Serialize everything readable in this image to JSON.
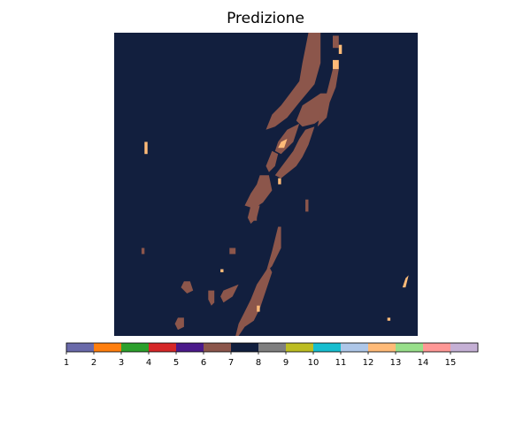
{
  "chart_data": {
    "type": "heatmap",
    "title": "Predizione",
    "background_class": 8,
    "background_color": "#121f3e",
    "regions": [
      {
        "class": 7,
        "color": "#8c564b",
        "polygon": [
          [
            0.64,
            0.0
          ],
          [
            0.68,
            0.0
          ],
          [
            0.68,
            0.1
          ],
          [
            0.66,
            0.17
          ],
          [
            0.61,
            0.23
          ],
          [
            0.57,
            0.28
          ],
          [
            0.53,
            0.31
          ],
          [
            0.5,
            0.32
          ],
          [
            0.52,
            0.27
          ],
          [
            0.55,
            0.24
          ],
          [
            0.58,
            0.2
          ],
          [
            0.61,
            0.16
          ],
          [
            0.62,
            0.1
          ],
          [
            0.63,
            0.05
          ]
        ]
      },
      {
        "class": 7,
        "color": "#8c564b",
        "polygon": [
          [
            0.68,
            0.2
          ],
          [
            0.71,
            0.2
          ],
          [
            0.7,
            0.27
          ],
          [
            0.66,
            0.3
          ],
          [
            0.62,
            0.31
          ],
          [
            0.6,
            0.29
          ],
          [
            0.62,
            0.24
          ],
          [
            0.65,
            0.22
          ]
        ]
      },
      {
        "class": 7,
        "color": "#8c564b",
        "polygon": [
          [
            0.72,
            0.12
          ],
          [
            0.74,
            0.12
          ],
          [
            0.73,
            0.18
          ],
          [
            0.71,
            0.23
          ],
          [
            0.7,
            0.28
          ],
          [
            0.67,
            0.31
          ],
          [
            0.68,
            0.26
          ],
          [
            0.7,
            0.2
          ]
        ]
      },
      {
        "class": 7,
        "color": "#8c564b",
        "polygon": [
          [
            0.57,
            0.32
          ],
          [
            0.61,
            0.3
          ],
          [
            0.59,
            0.36
          ],
          [
            0.55,
            0.4
          ],
          [
            0.53,
            0.39
          ],
          [
            0.54,
            0.36
          ]
        ]
      },
      {
        "class": 7,
        "color": "#8c564b",
        "polygon": [
          [
            0.63,
            0.32
          ],
          [
            0.66,
            0.31
          ],
          [
            0.64,
            0.37
          ],
          [
            0.62,
            0.41
          ],
          [
            0.6,
            0.44
          ],
          [
            0.55,
            0.48
          ],
          [
            0.53,
            0.47
          ],
          [
            0.56,
            0.43
          ],
          [
            0.59,
            0.39
          ],
          [
            0.61,
            0.35
          ]
        ]
      },
      {
        "class": 7,
        "color": "#8c564b",
        "polygon": [
          [
            0.52,
            0.39
          ],
          [
            0.54,
            0.4
          ],
          [
            0.53,
            0.44
          ],
          [
            0.51,
            0.46
          ],
          [
            0.5,
            0.44
          ]
        ]
      },
      {
        "class": 7,
        "color": "#8c564b",
        "polygon": [
          [
            0.48,
            0.47
          ],
          [
            0.51,
            0.47
          ],
          [
            0.52,
            0.52
          ],
          [
            0.49,
            0.56
          ],
          [
            0.46,
            0.58
          ],
          [
            0.43,
            0.57
          ],
          [
            0.45,
            0.53
          ],
          [
            0.47,
            0.5
          ]
        ]
      },
      {
        "class": 7,
        "color": "#8c564b",
        "polygon": [
          [
            0.45,
            0.57
          ],
          [
            0.48,
            0.57
          ],
          [
            0.47,
            0.61
          ],
          [
            0.45,
            0.63
          ],
          [
            0.44,
            0.61
          ]
        ]
      },
      {
        "class": 7,
        "color": "#8c564b",
        "polygon": [
          [
            0.54,
            0.64
          ],
          [
            0.55,
            0.64
          ],
          [
            0.55,
            0.71
          ],
          [
            0.52,
            0.77
          ],
          [
            0.5,
            0.79
          ],
          [
            0.52,
            0.72
          ],
          [
            0.53,
            0.68
          ]
        ]
      },
      {
        "class": 7,
        "color": "#8c564b",
        "polygon": [
          [
            0.51,
            0.77
          ],
          [
            0.52,
            0.79
          ],
          [
            0.5,
            0.85
          ],
          [
            0.48,
            0.91
          ],
          [
            0.46,
            0.95
          ],
          [
            0.43,
            0.97
          ],
          [
            0.41,
            1.0
          ],
          [
            0.4,
            1.0
          ],
          [
            0.41,
            0.96
          ],
          [
            0.43,
            0.92
          ],
          [
            0.45,
            0.88
          ],
          [
            0.47,
            0.83
          ],
          [
            0.49,
            0.8
          ]
        ]
      },
      {
        "class": 7,
        "color": "#8c564b",
        "polygon": [
          [
            0.36,
            0.85
          ],
          [
            0.41,
            0.83
          ],
          [
            0.39,
            0.87
          ],
          [
            0.36,
            0.89
          ],
          [
            0.35,
            0.87
          ]
        ]
      },
      {
        "class": 7,
        "color": "#8c564b",
        "polygon": [
          [
            0.23,
            0.82
          ],
          [
            0.25,
            0.82
          ],
          [
            0.26,
            0.85
          ],
          [
            0.24,
            0.86
          ],
          [
            0.22,
            0.84
          ]
        ]
      },
      {
        "class": 7,
        "color": "#8c564b",
        "polygon": [
          [
            0.31,
            0.85
          ],
          [
            0.33,
            0.85
          ],
          [
            0.33,
            0.89
          ],
          [
            0.32,
            0.9
          ],
          [
            0.31,
            0.88
          ]
        ]
      },
      {
        "class": 7,
        "color": "#8c564b",
        "polygon": [
          [
            0.21,
            0.94
          ],
          [
            0.23,
            0.94
          ],
          [
            0.23,
            0.97
          ],
          [
            0.21,
            0.98
          ],
          [
            0.2,
            0.96
          ]
        ]
      },
      {
        "class": 7,
        "color": "#8c564b",
        "polygon": [
          [
            0.72,
            0.01
          ],
          [
            0.74,
            0.01
          ],
          [
            0.74,
            0.05
          ],
          [
            0.72,
            0.05
          ]
        ]
      },
      {
        "class": 7,
        "color": "#8c564b",
        "polygon": [
          [
            0.63,
            0.55
          ],
          [
            0.64,
            0.55
          ],
          [
            0.64,
            0.59
          ],
          [
            0.63,
            0.59
          ]
        ]
      },
      {
        "class": 7,
        "color": "#8c564b",
        "polygon": [
          [
            0.38,
            0.71
          ],
          [
            0.4,
            0.71
          ],
          [
            0.4,
            0.73
          ],
          [
            0.38,
            0.73
          ]
        ]
      },
      {
        "class": 7,
        "color": "#8c564b",
        "polygon": [
          [
            0.46,
            0.6
          ],
          [
            0.47,
            0.6
          ],
          [
            0.47,
            0.62
          ],
          [
            0.46,
            0.62
          ]
        ]
      },
      {
        "class": 7,
        "color": "#8c564b",
        "polygon": [
          [
            0.09,
            0.71
          ],
          [
            0.1,
            0.71
          ],
          [
            0.1,
            0.73
          ],
          [
            0.09,
            0.73
          ]
        ]
      },
      {
        "class": 13,
        "color": "#ffbb78",
        "polygon": [
          [
            0.72,
            0.09
          ],
          [
            0.74,
            0.09
          ],
          [
            0.74,
            0.12
          ],
          [
            0.72,
            0.12
          ]
        ]
      },
      {
        "class": 13,
        "color": "#ffbb78",
        "polygon": [
          [
            0.74,
            0.04
          ],
          [
            0.75,
            0.04
          ],
          [
            0.75,
            0.07
          ],
          [
            0.74,
            0.07
          ]
        ]
      },
      {
        "class": 13,
        "color": "#ffbb78",
        "polygon": [
          [
            0.55,
            0.36
          ],
          [
            0.57,
            0.35
          ],
          [
            0.56,
            0.38
          ],
          [
            0.54,
            0.38
          ]
        ]
      },
      {
        "class": 13,
        "color": "#ffbb78",
        "polygon": [
          [
            0.1,
            0.36
          ],
          [
            0.11,
            0.36
          ],
          [
            0.11,
            0.4
          ],
          [
            0.1,
            0.4
          ]
        ]
      },
      {
        "class": 13,
        "color": "#ffbb78",
        "polygon": [
          [
            0.54,
            0.48
          ],
          [
            0.55,
            0.48
          ],
          [
            0.55,
            0.5
          ],
          [
            0.54,
            0.5
          ]
        ]
      },
      {
        "class": 13,
        "color": "#ffbb78",
        "polygon": [
          [
            0.96,
            0.81
          ],
          [
            0.97,
            0.8
          ],
          [
            0.96,
            0.84
          ],
          [
            0.95,
            0.84
          ]
        ]
      },
      {
        "class": 13,
        "color": "#ffbb78",
        "polygon": [
          [
            0.47,
            0.9
          ],
          [
            0.48,
            0.9
          ],
          [
            0.48,
            0.92
          ],
          [
            0.47,
            0.92
          ]
        ]
      },
      {
        "class": 13,
        "color": "#ffbb78",
        "polygon": [
          [
            0.35,
            0.78
          ],
          [
            0.36,
            0.78
          ],
          [
            0.36,
            0.79
          ],
          [
            0.35,
            0.79
          ]
        ]
      },
      {
        "class": 13,
        "color": "#ffbb78",
        "polygon": [
          [
            0.9,
            0.94
          ],
          [
            0.91,
            0.94
          ],
          [
            0.91,
            0.95
          ],
          [
            0.9,
            0.95
          ]
        ]
      }
    ],
    "colorbar": {
      "colors": [
        "#6a6aaa",
        "#ff7f0e",
        "#2ca02c",
        "#d62728",
        "#4b1a8a",
        "#8c564b",
        "#121f3e",
        "#7f7f7f",
        "#bcbd22",
        "#17becf",
        "#aec7e8",
        "#ffbb78",
        "#98df8a",
        "#ff9896",
        "#c5b0d5"
      ],
      "ticks": [
        "1",
        "2",
        "3",
        "4",
        "5",
        "6",
        "7",
        "8",
        "9",
        "10",
        "11",
        "12",
        "13",
        "14",
        "15"
      ]
    }
  }
}
